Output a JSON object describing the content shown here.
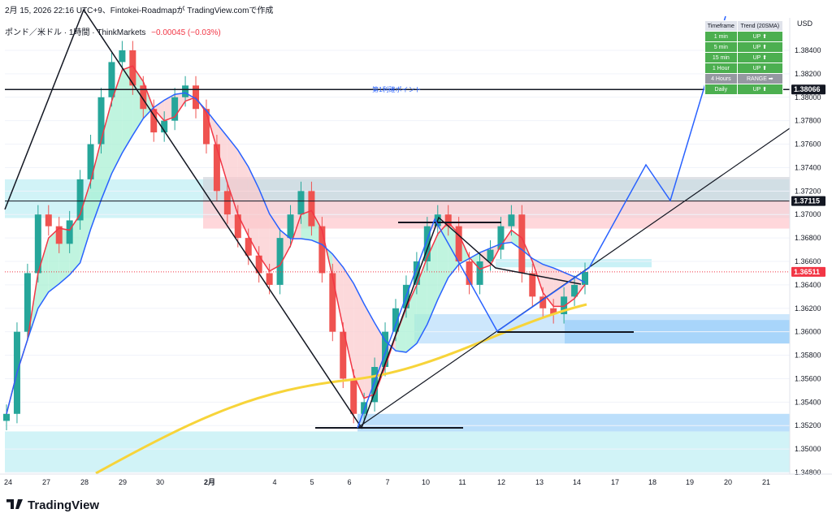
{
  "header": {
    "line1": "2月 15, 2026 22:16 UTC+9、Fintokei-Roadmapが TradingView.comで作成",
    "symbol": "ポンド／米ドル · 1時間 · ThinkMarkets",
    "change": "−0.00045 (−0.03%)"
  },
  "currency": "USD",
  "trend_table": {
    "headers": [
      "Timeframe",
      "Trend (20SMA)"
    ],
    "rows": [
      {
        "tf": "1 min",
        "trend": "UP ⬆"
      },
      {
        "tf": "5 min",
        "trend": "UP ⬆"
      },
      {
        "tf": "15 min",
        "trend": "UP ⬆"
      },
      {
        "tf": "1 Hour",
        "trend": "UP ⬆"
      },
      {
        "tf": "4 Hours",
        "trend": "RANGE ➡"
      },
      {
        "tf": "Daily",
        "trend": "UP ⬆"
      }
    ]
  },
  "footer": {
    "logo": "TradingView"
  },
  "colors": {
    "up": "#26a69a",
    "down": "#ef5350",
    "ma_red": "#f23645",
    "ma_blue": "#2962ff",
    "ma_yellow": "#f7d43a",
    "zone_cyan": "#b2ebf2",
    "zone_blue": "#90caf9",
    "zone_red": "#ffcdd2"
  },
  "chart_data": {
    "type": "candlestick",
    "ylim": [
      1.348,
      1.3865
    ],
    "yticks": [
      "1.38400",
      "1.38200",
      "1.38000",
      "1.37800",
      "1.37600",
      "1.37400",
      "1.37200",
      "1.37000",
      "1.36800",
      "1.36600",
      "1.36400",
      "1.36200",
      "1.36000",
      "1.35800",
      "1.35600",
      "1.35400",
      "1.35200",
      "1.35000",
      "1.34800"
    ],
    "xticks": [
      "24",
      "27",
      "28",
      "29",
      "30",
      "2月",
      "4",
      "5",
      "6",
      "7",
      "10",
      "11",
      "12",
      "13",
      "14",
      "17",
      "18",
      "19",
      "20",
      "21"
    ],
    "price_labels": [
      {
        "value": 1.38066,
        "text": "1.38066",
        "color": "#131722"
      },
      {
        "value": 1.37115,
        "text": "1.37115",
        "color": "#131722"
      },
      {
        "value": 1.36511,
        "text": "1.36511",
        "color": "#f23645"
      }
    ],
    "hline_annotation": {
      "value": 1.38066,
      "text": "第1利確ポイント"
    },
    "close_series": [
      1.353,
      1.36,
      1.365,
      1.37,
      1.369,
      1.3675,
      1.3695,
      1.373,
      1.376,
      1.38,
      1.383,
      1.384,
      1.381,
      1.379,
      1.377,
      1.378,
      1.38,
      1.381,
      1.379,
      1.376,
      1.372,
      1.37,
      1.368,
      1.3665,
      1.365,
      1.364,
      1.368,
      1.37,
      1.372,
      1.369,
      1.365,
      1.36,
      1.356,
      1.353,
      1.354,
      1.357,
      1.36,
      1.362,
      1.364,
      1.366,
      1.369,
      1.37,
      1.369,
      1.366,
      1.364,
      1.366,
      1.367,
      1.369,
      1.37,
      1.365,
      1.363,
      1.362,
      1.3615,
      1.363,
      1.364,
      1.3651
    ],
    "moving_averages": [
      {
        "name": "",
        "color": "#f23645"
      },
      {
        "name": "",
        "color": "#2962ff"
      },
      {
        "name": "",
        "color": "#f7d43a"
      }
    ]
  }
}
